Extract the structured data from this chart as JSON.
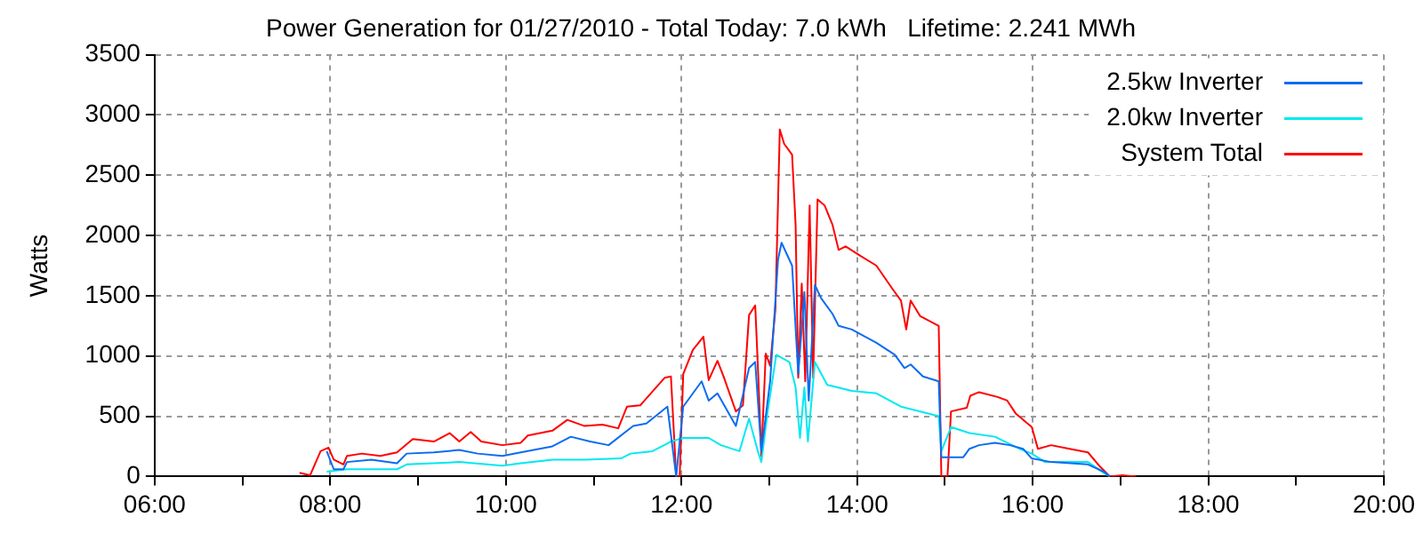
{
  "chart_data": {
    "type": "line",
    "title": "Power Generation for 01/27/2010 - Total Today: 7.0 kWh   Lifetime: 2.241 MWh",
    "ylabel": "Watts",
    "xlim": [
      6,
      20
    ],
    "xticks": [
      {
        "value": 6,
        "label": "06:00"
      },
      {
        "value": 7,
        "label": null
      },
      {
        "value": 8,
        "label": "08:00"
      },
      {
        "value": 9,
        "label": null
      },
      {
        "value": 10,
        "label": "10:00"
      },
      {
        "value": 11,
        "label": null
      },
      {
        "value": 12,
        "label": "12:00"
      },
      {
        "value": 13,
        "label": null
      },
      {
        "value": 14,
        "label": "14:00"
      },
      {
        "value": 15,
        "label": null
      },
      {
        "value": 16,
        "label": "16:00"
      },
      {
        "value": 17,
        "label": null
      },
      {
        "value": 18,
        "label": "18:00"
      },
      {
        "value": 19,
        "label": null
      },
      {
        "value": 20,
        "label": "20:00"
      }
    ],
    "ylim": [
      0,
      3500
    ],
    "yticks": [
      0,
      500,
      1000,
      1500,
      2000,
      2500,
      3000,
      3500
    ],
    "grid": true,
    "legend": "top right",
    "series": [
      {
        "name": "2.5kw Inverter",
        "color": "#0a6cf0",
        "x": [
          7.96,
          8.04,
          8.15,
          8.19,
          8.47,
          8.76,
          8.87,
          9.18,
          9.47,
          9.68,
          9.96,
          10.17,
          10.53,
          10.74,
          10.96,
          11.17,
          11.45,
          11.6,
          11.84,
          11.94,
          12.02,
          12.23,
          12.31,
          12.41,
          12.62,
          12.77,
          12.84,
          12.91,
          13.01,
          13.1,
          13.14,
          13.26,
          13.33,
          13.4,
          13.45,
          13.52,
          13.59,
          13.72,
          13.79,
          13.94,
          14.22,
          14.43,
          14.54,
          14.61,
          14.75,
          14.93,
          14.96,
          15.06,
          15.21,
          15.28,
          15.39,
          15.57,
          15.74,
          15.89,
          15.99,
          16.21,
          16.63,
          16.81,
          16.88
        ],
        "values": [
          210,
          60,
          60,
          120,
          140,
          110,
          190,
          200,
          220,
          190,
          170,
          200,
          250,
          330,
          290,
          260,
          420,
          440,
          580,
          0,
          580,
          790,
          630,
          690,
          420,
          900,
          950,
          210,
          790,
          1800,
          1940,
          1750,
          850,
          1530,
          630,
          1590,
          1480,
          1350,
          1250,
          1220,
          1110,
          1010,
          900,
          930,
          830,
          790,
          160,
          160,
          160,
          230,
          260,
          280,
          260,
          230,
          150,
          120,
          100,
          40,
          0
        ]
      },
      {
        "name": "2.0kw Inverter",
        "color": "#00e8f0",
        "x": [
          7.96,
          8.19,
          8.76,
          8.87,
          9.47,
          9.96,
          10.17,
          10.53,
          10.89,
          11.31,
          11.42,
          11.67,
          11.88,
          12.02,
          12.31,
          12.45,
          12.66,
          12.77,
          12.87,
          12.91,
          12.98,
          13.08,
          13.23,
          13.3,
          13.35,
          13.4,
          13.44,
          13.52,
          13.66,
          13.94,
          14.22,
          14.5,
          14.93,
          14.96,
          15.07,
          15.28,
          15.57,
          15.85,
          15.99,
          16.14,
          16.63,
          16.81,
          16.88
        ],
        "values": [
          40,
          60,
          60,
          100,
          120,
          90,
          110,
          140,
          140,
          150,
          190,
          210,
          290,
          320,
          320,
          260,
          210,
          480,
          210,
          120,
          530,
          1010,
          950,
          740,
          320,
          740,
          290,
          950,
          760,
          710,
          690,
          580,
          500,
          210,
          410,
          360,
          330,
          230,
          190,
          120,
          120,
          30,
          0
        ]
      },
      {
        "name": "System Total",
        "color": "#ff0000",
        "x": [
          7.65,
          7.77,
          7.89,
          7.98,
          8.04,
          8.15,
          8.19,
          8.36,
          8.57,
          8.76,
          8.94,
          9.18,
          9.36,
          9.47,
          9.6,
          9.72,
          9.96,
          10.17,
          10.25,
          10.53,
          10.7,
          10.89,
          11.1,
          11.28,
          11.38,
          11.53,
          11.7,
          11.81,
          11.88,
          11.94,
          11.98,
          12.02,
          12.13,
          12.25,
          12.31,
          12.41,
          12.48,
          12.62,
          12.7,
          12.77,
          12.84,
          12.87,
          12.91,
          12.96,
          13.01,
          13.07,
          13.12,
          13.17,
          13.26,
          13.3,
          13.33,
          13.37,
          13.41,
          13.46,
          13.5,
          13.55,
          13.63,
          13.72,
          13.79,
          13.87,
          14.04,
          14.22,
          14.4,
          14.5,
          14.56,
          14.61,
          14.72,
          14.93,
          14.96,
          15.03,
          15.07,
          15.25,
          15.29,
          15.39,
          15.6,
          15.71,
          15.81,
          15.99,
          16.06,
          16.21,
          16.42,
          16.63,
          16.77,
          16.88,
          17.02,
          17.18
        ],
        "values": [
          30,
          10,
          210,
          240,
          140,
          100,
          170,
          190,
          170,
          200,
          310,
          290,
          360,
          290,
          370,
          290,
          260,
          280,
          340,
          380,
          470,
          420,
          430,
          400,
          580,
          590,
          730,
          820,
          830,
          0,
          0,
          850,
          1050,
          1160,
          800,
          960,
          830,
          540,
          590,
          1340,
          1420,
          920,
          170,
          1020,
          920,
          1390,
          2880,
          2760,
          2670,
          2090,
          820,
          1600,
          790,
          2250,
          820,
          2300,
          2250,
          2090,
          1880,
          1910,
          1830,
          1750,
          1560,
          1460,
          1220,
          1460,
          1330,
          1250,
          0,
          0,
          540,
          570,
          670,
          700,
          660,
          630,
          520,
          410,
          230,
          260,
          230,
          200,
          80,
          0,
          10,
          0
        ]
      }
    ]
  }
}
